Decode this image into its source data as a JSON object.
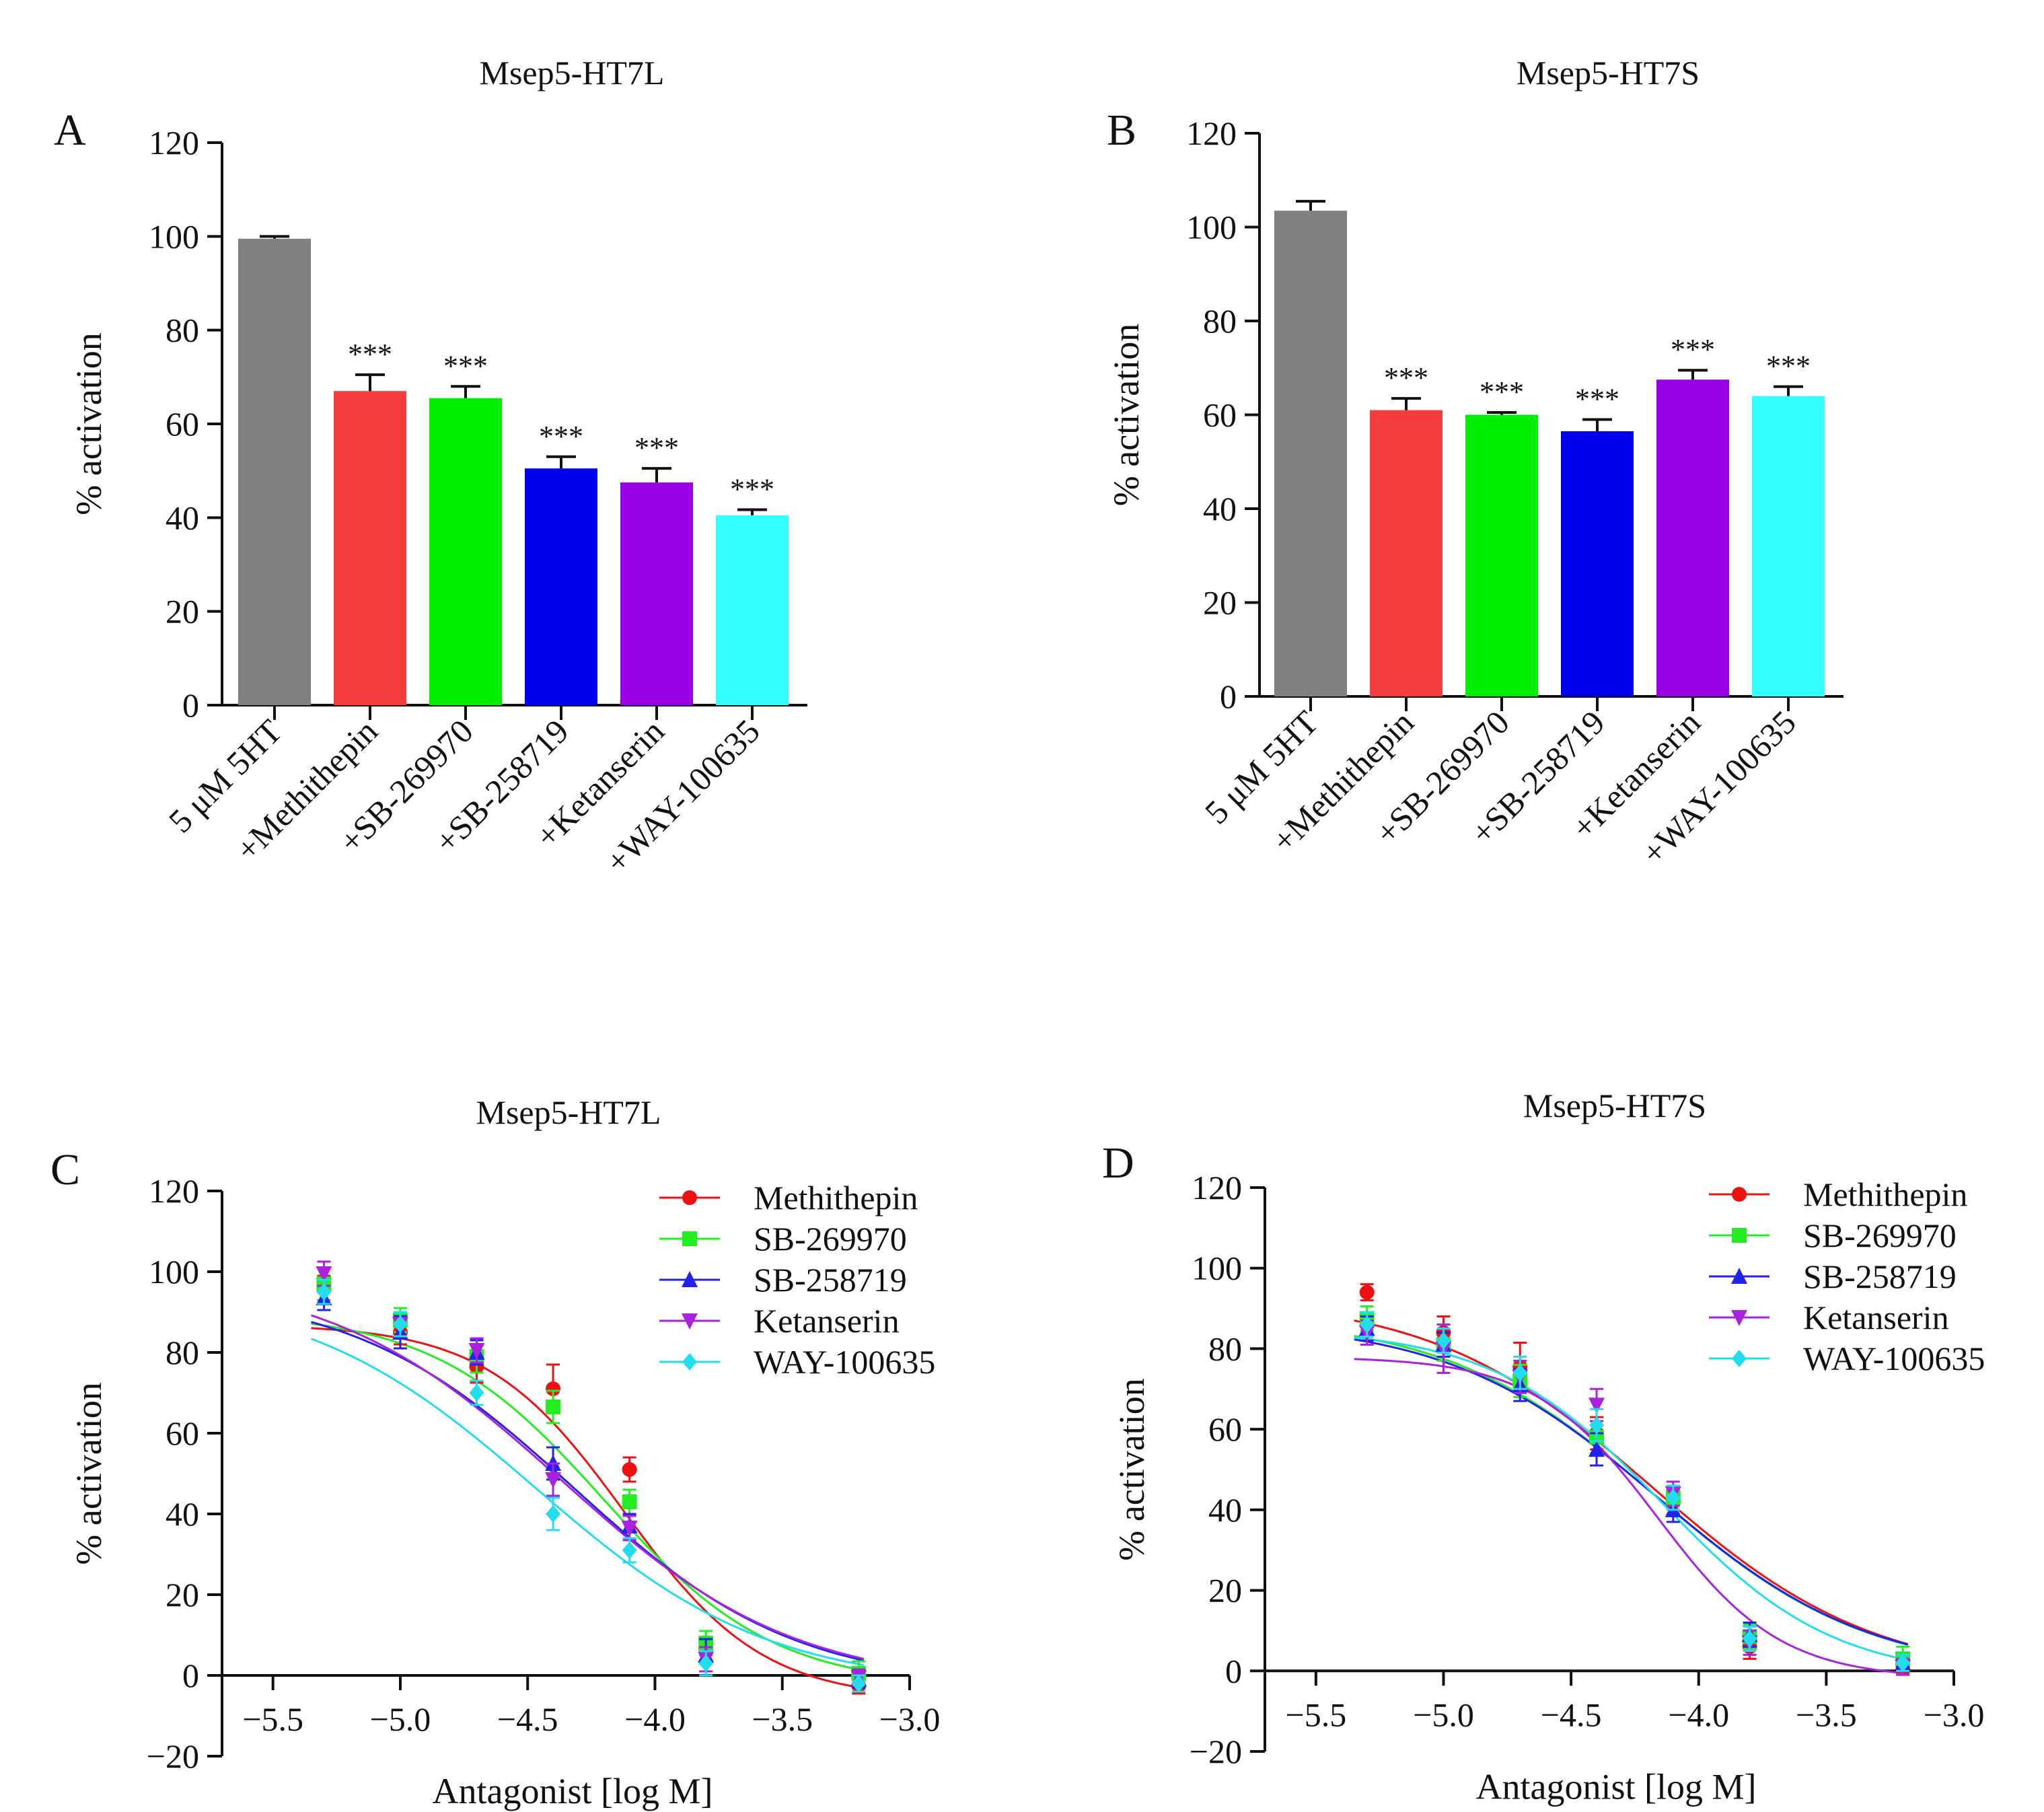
{
  "chart_data": [
    {
      "type": "bar",
      "panel_letter": "A",
      "title": "Msep5-HT7L",
      "xlabel": "",
      "ylabel": "% activation",
      "ylim": [
        0,
        120
      ],
      "yticks": [
        0,
        20,
        40,
        60,
        80,
        100,
        120
      ],
      "categories": [
        "5 μM 5HT",
        "+Methithepin",
        "+SB-269970",
        "+SB-258719",
        "+Ketanserin",
        "+WAY-100635"
      ],
      "values": [
        99.5,
        67,
        65.5,
        50.5,
        47.5,
        40.5
      ],
      "errors": [
        0.5,
        3.5,
        2.5,
        2.5,
        3,
        1.2
      ],
      "significance": [
        "",
        "***",
        "***",
        "***",
        "***",
        "***"
      ],
      "colors": [
        "#808080",
        "#f53d3d",
        "#00ee00",
        "#0000ee",
        "#9900e6",
        "#33ffff"
      ]
    },
    {
      "type": "bar",
      "panel_letter": "B",
      "title": "Msep5-HT7S",
      "xlabel": "",
      "ylabel": "% activation",
      "ylim": [
        0,
        120
      ],
      "yticks": [
        0,
        20,
        40,
        60,
        80,
        100,
        120
      ],
      "categories": [
        "5 μM 5HT",
        "+Methithepin",
        "+SB-269970",
        "+SB-258719",
        "+Ketanserin",
        "+WAY-100635"
      ],
      "values": [
        103.5,
        61,
        60,
        56.5,
        67.5,
        64
      ],
      "errors": [
        2,
        2.5,
        0.5,
        2.5,
        2,
        2
      ],
      "significance": [
        "",
        "***",
        "***",
        "***",
        "***",
        "***"
      ],
      "colors": [
        "#808080",
        "#f53d3d",
        "#00ee00",
        "#0000ee",
        "#9900e6",
        "#33ffff"
      ]
    },
    {
      "type": "line",
      "panel_letter": "C",
      "title": "Msep5-HT7L",
      "xlabel": "Antagonist [log M]",
      "ylabel": "% activation",
      "xlim": [
        -5.7,
        -3.0
      ],
      "ylim": [
        -20,
        120
      ],
      "xticks": [
        -5.5,
        -5.0,
        -4.5,
        -4.0,
        -3.5,
        -3.0
      ],
      "xtick_labels": [
        "−5.5",
        "−5.0",
        "−4.5",
        "−4.0",
        "−3.5",
        "−3.0"
      ],
      "yticks": [
        -20,
        0,
        20,
        40,
        60,
        80,
        100,
        120
      ],
      "ytick_labels": [
        "−20",
        "0",
        "20",
        "40",
        "60",
        "80",
        "100",
        "120"
      ],
      "x": [
        -5.3,
        -5.0,
        -4.7,
        -4.4,
        -4.1,
        -3.8,
        -3.2
      ],
      "series": [
        {
          "name": "Methithepin",
          "color": "#ee1111",
          "marker": "circle",
          "values": [
            96,
            85,
            76.5,
            71,
            51,
            6.5,
            -2.5
          ],
          "errors": [
            3,
            3,
            4,
            6,
            3,
            3,
            2
          ],
          "fit": {
            "top": 87,
            "bottom": -6,
            "logIC50": -4.12,
            "hill": 1.6
          }
        },
        {
          "name": "SB-269970",
          "color": "#22ee22",
          "marker": "square",
          "values": [
            97,
            88,
            79,
            66.5,
            43,
            8,
            0.5
          ],
          "errors": [
            4,
            3,
            4,
            4,
            3,
            3,
            3
          ],
          "fit": {
            "top": 90,
            "bottom": -3,
            "logIC50": -4.2,
            "hill": 1.3
          }
        },
        {
          "name": "SB-258719",
          "color": "#2222ee",
          "marker": "triangle-up",
          "values": [
            93.5,
            85,
            80,
            52.5,
            37,
            5,
            -1
          ],
          "errors": [
            3,
            4,
            3,
            4,
            3,
            4,
            2
          ],
          "fit": {
            "top": 96,
            "bottom": -3,
            "logIC50": -4.32,
            "hill": 1.0
          }
        },
        {
          "name": "Ketanserin",
          "color": "#aa22dd",
          "marker": "triangle-down",
          "values": [
            99.5,
            87,
            80.5,
            48.5,
            36.5,
            4,
            -0.5
          ],
          "errors": [
            3,
            3,
            3,
            4,
            3,
            3,
            2
          ],
          "fit": {
            "top": 100,
            "bottom": -3,
            "logIC50": -4.37,
            "hill": 0.95
          }
        },
        {
          "name": "WAY-100635",
          "color": "#22ddee",
          "marker": "diamond",
          "values": [
            95,
            87,
            70,
            40,
            31,
            3,
            -2
          ],
          "errors": [
            3,
            3,
            3,
            4,
            3,
            3,
            2
          ],
          "fit": {
            "top": 96,
            "bottom": -3,
            "logIC50": -4.47,
            "hill": 0.95
          }
        }
      ]
    },
    {
      "type": "line",
      "panel_letter": "D",
      "title": "Msep5-HT7S",
      "xlabel": "Antagonist [log M]",
      "ylabel": "% activation",
      "xlim": [
        -5.7,
        -3.0
      ],
      "ylim": [
        -20,
        120
      ],
      "xticks": [
        -5.5,
        -5.0,
        -4.5,
        -4.0,
        -3.5,
        -3.0
      ],
      "xtick_labels": [
        "−5.5",
        "−5.0",
        "−4.5",
        "−4.0",
        "−3.5",
        "−3.0"
      ],
      "yticks": [
        -20,
        0,
        20,
        40,
        60,
        80,
        100,
        120
      ],
      "ytick_labels": [
        "−20",
        "0",
        "20",
        "40",
        "60",
        "80",
        "100",
        "120"
      ],
      "x": [
        -5.3,
        -5.0,
        -4.7,
        -4.4,
        -4.1,
        -3.8,
        -3.2
      ],
      "series": [
        {
          "name": "Methithepin",
          "color": "#ee1111",
          "marker": "circle",
          "values": [
            94,
            84,
            75.5,
            59,
            42,
            6,
            1.5
          ],
          "errors": [
            2,
            4,
            6,
            4,
            3,
            3,
            2
          ],
          "fit": {
            "top": 93,
            "bottom": -2,
            "logIC50": -4.18,
            "hill": 1.0
          }
        },
        {
          "name": "SB-269970",
          "color": "#22ee22",
          "marker": "square",
          "values": [
            87.5,
            81,
            72,
            58,
            43,
            8.5,
            3
          ],
          "errors": [
            3,
            4,
            4,
            4,
            3,
            3,
            3
          ],
          "fit": {
            "top": 88,
            "bottom": -1,
            "logIC50": -4.17,
            "hill": 1.05
          }
        },
        {
          "name": "SB-258719",
          "color": "#2222ee",
          "marker": "triangle-up",
          "values": [
            85,
            81,
            71,
            55,
            40,
            9,
            2
          ],
          "errors": [
            3,
            3,
            4,
            4,
            3,
            3,
            2
          ],
          "fit": {
            "top": 87,
            "bottom": -1,
            "logIC50": -4.16,
            "hill": 1.05
          }
        },
        {
          "name": "Ketanserin",
          "color": "#aa22dd",
          "marker": "triangle-down",
          "values": [
            84,
            80,
            73,
            66,
            44,
            7,
            1
          ],
          "errors": [
            3,
            6,
            4,
            4,
            3,
            3,
            2
          ],
          "fit": {
            "top": 78,
            "bottom": -2,
            "logIC50": -4.16,
            "hill": 1.8
          }
        },
        {
          "name": "WAY-100635",
          "color": "#22ddee",
          "marker": "diamond",
          "values": [
            86,
            82,
            74,
            61,
            43,
            8,
            2
          ],
          "errors": [
            3,
            3,
            4,
            4,
            3,
            3,
            2
          ],
          "fit": {
            "top": 85,
            "bottom": -2,
            "logIC50": -4.14,
            "hill": 1.3
          }
        }
      ]
    }
  ]
}
